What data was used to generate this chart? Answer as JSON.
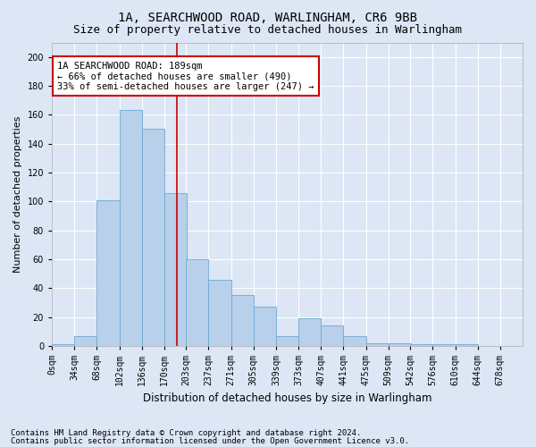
{
  "title1": "1A, SEARCHWOOD ROAD, WARLINGHAM, CR6 9BB",
  "title2": "Size of property relative to detached houses in Warlingham",
  "xlabel": "Distribution of detached houses by size in Warlingham",
  "ylabel": "Number of detached properties",
  "bin_labels": [
    "0sqm",
    "34sqm",
    "68sqm",
    "102sqm",
    "136sqm",
    "170sqm",
    "203sqm",
    "237sqm",
    "271sqm",
    "305sqm",
    "339sqm",
    "373sqm",
    "407sqm",
    "441sqm",
    "475sqm",
    "509sqm",
    "542sqm",
    "576sqm",
    "610sqm",
    "644sqm",
    "678sqm"
  ],
  "bar_values": [
    1,
    7,
    101,
    163,
    150,
    106,
    60,
    46,
    35,
    27,
    7,
    19,
    14,
    7,
    2,
    2,
    1,
    1,
    1,
    0,
    0
  ],
  "bar_color": "#b8d0ea",
  "bar_edge_color": "#6aaad4",
  "bin_starts": [
    0,
    34,
    68,
    102,
    136,
    170,
    203,
    237,
    271,
    305,
    339,
    373,
    407,
    441,
    475,
    509,
    542,
    576,
    610,
    644,
    678
  ],
  "bin_width": 34,
  "property_size": 189,
  "vline_color": "#cc0000",
  "annotation_text": "1A SEARCHWOOD ROAD: 189sqm\n← 66% of detached houses are smaller (490)\n33% of semi-detached houses are larger (247) →",
  "annotation_box_facecolor": "#ffffff",
  "annotation_box_edgecolor": "#cc0000",
  "ylim": [
    0,
    210
  ],
  "yticks": [
    0,
    20,
    40,
    60,
    80,
    100,
    120,
    140,
    160,
    180,
    200
  ],
  "bg_color": "#dce6f5",
  "grid_color": "#ffffff",
  "footer1": "Contains HM Land Registry data © Crown copyright and database right 2024.",
  "footer2": "Contains public sector information licensed under the Open Government Licence v3.0.",
  "title1_fontsize": 10,
  "title2_fontsize": 9,
  "xlabel_fontsize": 8.5,
  "ylabel_fontsize": 8,
  "tick_fontsize": 7,
  "annotation_fontsize": 7.5,
  "footer_fontsize": 6.5
}
